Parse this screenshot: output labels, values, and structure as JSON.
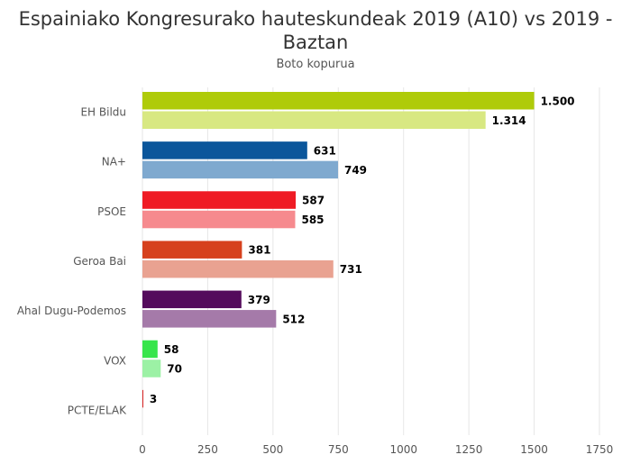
{
  "chart_data": {
    "type": "bar",
    "orientation": "horizontal",
    "title": "Espainiako Kongresurako hauteskundeak 2019 (A10) vs 2019 - Baztan",
    "subtitle": "Boto kopurua",
    "xlabel": "",
    "ylabel": "",
    "xlim": [
      0,
      1750
    ],
    "ticks": [
      0,
      250,
      500,
      750,
      1000,
      1250,
      1500,
      1750
    ],
    "tick_labels": [
      "0",
      "250",
      "500",
      "750",
      "1000",
      "1250",
      "1500",
      "1750"
    ],
    "grid": true,
    "legend": "none",
    "categories": [
      "EH Bildu",
      "NA+",
      "PSOE",
      "Geroa Bai",
      "Ahal Dugu-Podemos",
      "VOX",
      "PCTE/ELAK"
    ],
    "series": [
      {
        "values": [
          1500,
          631,
          587,
          381,
          379,
          58,
          3
        ],
        "labels": [
          "1.500",
          "631",
          "587",
          "381",
          "379",
          "58",
          "3"
        ],
        "colors": [
          "#afcb09",
          "#0b569b",
          "#ef1b24",
          "#d6411d",
          "#540b5c",
          "#37e54b",
          "#d20000"
        ]
      },
      {
        "values": [
          1314,
          749,
          585,
          731,
          512,
          70,
          null
        ],
        "labels": [
          "1.314",
          "749",
          "585",
          "731",
          "512",
          "70",
          ""
        ],
        "colors": [
          "#d8e882",
          "#7fa9cf",
          "#f68a8e",
          "#e9a291",
          "#a57aa9",
          "#9cf1a5",
          "#ffffff"
        ]
      }
    ]
  }
}
